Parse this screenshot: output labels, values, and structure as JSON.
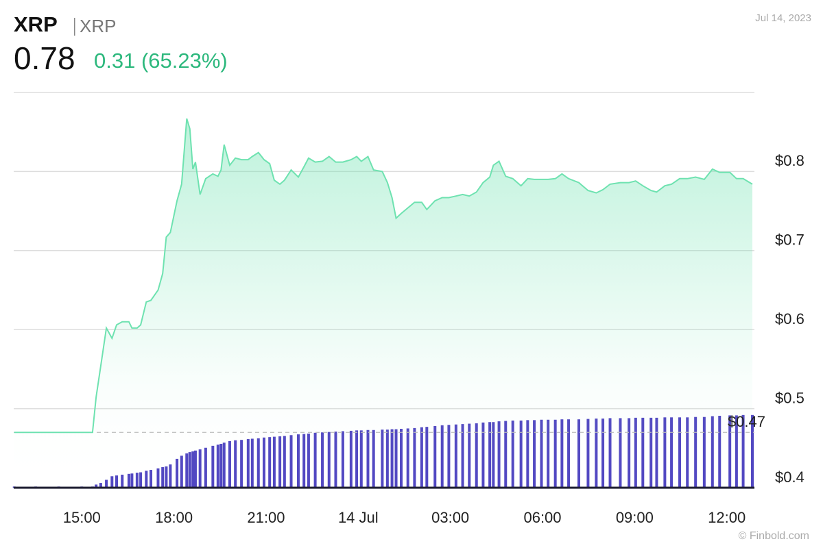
{
  "chart_data": {
    "type": "area",
    "title": "XRP",
    "subtitle": "XRP",
    "price": "0.78",
    "change": "0.31 (65.23%)",
    "date": "Jul 14, 2023",
    "credit": "© Finbold.com",
    "x": [
      "2023-07-13T12:48",
      "2023-07-13T13:30",
      "2023-07-13T14:15",
      "2023-07-13T15:00",
      "2023-07-13T15:21",
      "2023-07-13T15:28",
      "2023-07-13T15:37",
      "2023-07-13T15:48",
      "2023-07-13T15:59",
      "2023-07-13T16:08",
      "2023-07-13T16:19",
      "2023-07-13T16:32",
      "2023-07-13T16:38",
      "2023-07-13T16:48",
      "2023-07-13T16:55",
      "2023-07-13T17:06",
      "2023-07-13T17:15",
      "2023-07-13T17:29",
      "2023-07-13T17:38",
      "2023-07-13T17:45",
      "2023-07-13T17:53",
      "2023-07-13T18:06",
      "2023-07-13T18:15",
      "2023-07-13T18:25",
      "2023-07-13T18:31",
      "2023-07-13T18:37",
      "2023-07-13T18:42",
      "2023-07-13T18:51",
      "2023-07-13T19:02",
      "2023-07-13T19:16",
      "2023-07-13T19:26",
      "2023-07-13T19:32",
      "2023-07-13T19:38",
      "2023-07-13T19:49",
      "2023-07-13T20:00",
      "2023-07-13T20:12",
      "2023-07-13T20:25",
      "2023-07-13T20:33",
      "2023-07-13T20:45",
      "2023-07-13T20:56",
      "2023-07-13T21:07",
      "2023-07-13T21:16",
      "2023-07-13T21:27",
      "2023-07-13T21:36",
      "2023-07-13T21:49",
      "2023-07-13T22:03",
      "2023-07-13T22:14",
      "2023-07-13T22:23",
      "2023-07-13T22:36",
      "2023-07-13T22:50",
      "2023-07-13T23:03",
      "2023-07-13T23:16",
      "2023-07-13T23:30",
      "2023-07-13T23:46",
      "2023-07-13T23:57",
      "2023-07-14T00:06",
      "2023-07-14T00:19",
      "2023-07-14T00:30",
      "2023-07-14T00:47",
      "2023-07-14T00:57",
      "2023-07-14T01:06",
      "2023-07-14T01:14",
      "2023-07-14T01:24",
      "2023-07-14T01:37",
      "2023-07-14T01:50",
      "2023-07-14T02:04",
      "2023-07-14T02:14",
      "2023-07-14T02:30",
      "2023-07-14T02:44",
      "2023-07-14T02:57",
      "2023-07-14T03:11",
      "2023-07-14T03:24",
      "2023-07-14T03:37",
      "2023-07-14T03:51",
      "2023-07-14T04:04",
      "2023-07-14T04:17",
      "2023-07-14T04:24",
      "2023-07-14T04:35",
      "2023-07-14T04:48",
      "2023-07-14T05:02",
      "2023-07-14T05:18",
      "2023-07-14T05:31",
      "2023-07-14T05:44",
      "2023-07-14T05:58",
      "2023-07-14T06:11",
      "2023-07-14T06:25",
      "2023-07-14T06:38",
      "2023-07-14T06:51",
      "2023-07-14T07:11",
      "2023-07-14T07:29",
      "2023-07-14T07:45",
      "2023-07-14T07:58",
      "2023-07-14T08:12",
      "2023-07-14T08:32",
      "2023-07-14T08:49",
      "2023-07-14T09:02",
      "2023-07-14T09:16",
      "2023-07-14T09:32",
      "2023-07-14T09:43",
      "2023-07-14T09:59",
      "2023-07-14T10:12",
      "2023-07-14T10:28",
      "2023-07-14T10:43",
      "2023-07-14T10:59",
      "2023-07-14T11:16",
      "2023-07-14T11:32",
      "2023-07-14T11:46",
      "2023-07-14T12:06",
      "2023-07-14T12:19",
      "2023-07-14T12:32",
      "2023-07-14T12:50"
    ],
    "series": [
      {
        "color": "#6ee2b0",
        "values": [
          0.47,
          0.47,
          0.47,
          0.47,
          0.47,
          0.515,
          0.554,
          0.602,
          0.589,
          0.606,
          0.61,
          0.61,
          0.602,
          0.602,
          0.606,
          0.635,
          0.637,
          0.65,
          0.671,
          0.717,
          0.723,
          0.763,
          0.784,
          0.867,
          0.854,
          0.803,
          0.812,
          0.771,
          0.791,
          0.797,
          0.794,
          0.802,
          0.834,
          0.808,
          0.817,
          0.815,
          0.815,
          0.819,
          0.824,
          0.815,
          0.81,
          0.789,
          0.784,
          0.789,
          0.802,
          0.793,
          0.806,
          0.817,
          0.812,
          0.813,
          0.819,
          0.812,
          0.812,
          0.815,
          0.819,
          0.813,
          0.819,
          0.802,
          0.8,
          0.786,
          0.767,
          0.741,
          0.747,
          0.754,
          0.761,
          0.761,
          0.752,
          0.763,
          0.767,
          0.767,
          0.769,
          0.771,
          0.769,
          0.774,
          0.786,
          0.793,
          0.808,
          0.813,
          0.794,
          0.791,
          0.782,
          0.791,
          0.79,
          0.79,
          0.79,
          0.791,
          0.797,
          0.791,
          0.786,
          0.776,
          0.773,
          0.777,
          0.784,
          0.786,
          0.786,
          0.788,
          0.782,
          0.776,
          0.774,
          0.782,
          0.784,
          0.791,
          0.791,
          0.793,
          0.79,
          0.803,
          0.799,
          0.799,
          0.791,
          0.791,
          0.784
        ]
      },
      {
        "type": "bar",
        "axis": "y2",
        "color": "#5147c2",
        "values": [
          0.3,
          0.3,
          0.3,
          0.3,
          0.3,
          0.8,
          1.2,
          2.0,
          2.9,
          3.1,
          3.3,
          3.5,
          3.6,
          3.8,
          3.9,
          4.3,
          4.5,
          4.9,
          5.2,
          5.4,
          5.9,
          7.3,
          8.1,
          8.7,
          9.0,
          9.2,
          9.4,
          9.7,
          10.1,
          10.6,
          10.9,
          11.1,
          11.4,
          11.8,
          12.0,
          12.1,
          12.3,
          12.4,
          12.5,
          12.7,
          12.8,
          12.9,
          13.0,
          13.1,
          13.3,
          13.5,
          13.6,
          13.7,
          13.9,
          14.0,
          14.1,
          14.2,
          14.3,
          14.4,
          14.5,
          14.5,
          14.6,
          14.6,
          14.7,
          14.7,
          14.8,
          14.8,
          14.9,
          15.0,
          15.1,
          15.3,
          15.4,
          15.6,
          15.8,
          15.9,
          16.0,
          16.1,
          16.2,
          16.3,
          16.5,
          16.6,
          16.6,
          16.8,
          16.9,
          17.0,
          17.0,
          17.1,
          17.1,
          17.2,
          17.2,
          17.2,
          17.3,
          17.3,
          17.3,
          17.4,
          17.5,
          17.5,
          17.6,
          17.6,
          17.6,
          17.7,
          17.7,
          17.7,
          17.7,
          17.8,
          17.8,
          17.8,
          17.8,
          17.9,
          17.9,
          18.1,
          18.2,
          18.3,
          18.3,
          18.4,
          18.4
        ]
      }
    ],
    "xlim": [
      "2023-07-13T12:47",
      "2023-07-14T12:54"
    ],
    "xticks": [
      {
        "value": "2023-07-13T15:00",
        "label": "15:00"
      },
      {
        "value": "2023-07-13T18:00",
        "label": "18:00"
      },
      {
        "value": "2023-07-13T21:00",
        "label": "21:00"
      },
      {
        "value": "2023-07-14T00:00",
        "label": "14 Jul"
      },
      {
        "value": "2023-07-14T03:00",
        "label": "03:00"
      },
      {
        "value": "2023-07-14T06:00",
        "label": "06:00"
      },
      {
        "value": "2023-07-14T09:00",
        "label": "09:00"
      },
      {
        "value": "2023-07-14T12:00",
        "label": "12:00"
      }
    ],
    "ylim": [
      0.4,
      0.9
    ],
    "yticks": [
      {
        "value": 0.4,
        "label": "$0.4"
      },
      {
        "value": 0.5,
        "label": "$0.5"
      },
      {
        "value": 0.6,
        "label": "$0.6"
      },
      {
        "value": 0.7,
        "label": "$0.7"
      },
      {
        "value": 0.8,
        "label": "$0.8"
      }
    ],
    "y2lim": [
      0,
      100
    ],
    "reference_line": {
      "value": 0.47,
      "label": "$0.47"
    },
    "grid": true
  }
}
